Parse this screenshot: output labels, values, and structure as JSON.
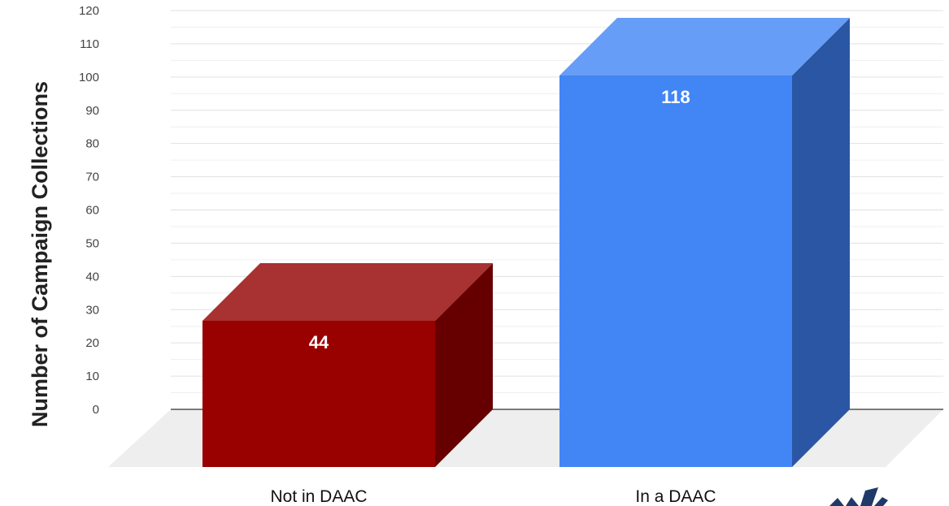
{
  "chart_data": {
    "type": "bar",
    "title": "",
    "xlabel": "",
    "ylabel": "Number of Campaign Collections",
    "categories": [
      "Not in DAAC",
      "In a DAAC"
    ],
    "values": [
      44,
      118
    ],
    "data_labels": [
      "44",
      "118"
    ],
    "ylim": [
      0,
      120
    ],
    "yticks": [
      0,
      10,
      20,
      30,
      40,
      50,
      60,
      70,
      80,
      90,
      100,
      110,
      120
    ],
    "grid": true,
    "style": "3d-bar",
    "legend": "none",
    "colors": {
      "Not in DAAC": {
        "front": "#990000",
        "top": "#a83131",
        "side": "#660000"
      },
      "In a DAAC": {
        "front": "#4285f4",
        "top": "#669df6",
        "side": "#2b56a3"
      }
    },
    "floor_color": "#eeeeee",
    "gridline_color": "#e0e0e0",
    "baseline_color": "#333333"
  },
  "logo": {
    "color": "#1f3a68",
    "icon": "sunburst-logo-icon"
  }
}
